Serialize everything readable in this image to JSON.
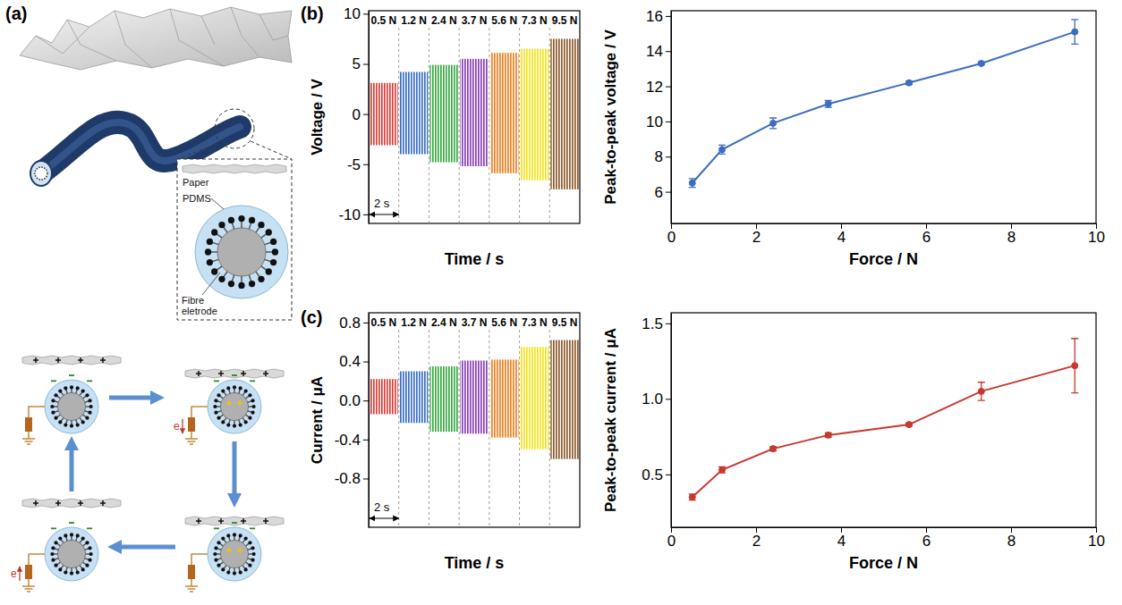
{
  "panel_labels": [
    "(a)",
    "(b)",
    "(c)"
  ],
  "diagram": {
    "layers": [
      "Paper",
      "PDMS",
      "Fibre eletrode"
    ],
    "electron_label": "e"
  },
  "chart_data": [
    {
      "type": "envelope",
      "categories": [
        "0.5 N",
        "1.2 N",
        "2.4 N",
        "3.7 N",
        "5.6 N",
        "7.3 N",
        "9.5 N"
      ],
      "x": [
        0,
        2,
        4,
        6,
        8,
        10,
        12
      ],
      "values": [
        3.1,
        4.2,
        4.9,
        5.5,
        6.1,
        6.5,
        7.5
      ],
      "lows": [
        -3.1,
        -4.0,
        -4.8,
        -5.2,
        -5.9,
        -6.6,
        -7.5
      ],
      "colors": [
        "#d6403a",
        "#3a6fc4",
        "#3aa845",
        "#8a3fb8",
        "#f07f1e",
        "#f2e21a",
        "#8b5a2b"
      ],
      "xlim": [
        0,
        14
      ],
      "ylim": [
        -10.9,
        10.3
      ],
      "yticks": [
        -10,
        -5,
        0,
        5,
        10
      ],
      "tick_labels": "y",
      "x_label": "Time / s",
      "y_label": "Voltage / V",
      "scale_bar": {
        "value": 2,
        "label": "2 s"
      }
    },
    {
      "type": "envelope",
      "categories": [
        "0.5 N",
        "1.2 N",
        "2.4 N",
        "3.7 N",
        "5.6 N",
        "7.3 N",
        "9.5 N"
      ],
      "x": [
        0,
        2,
        4,
        6,
        8,
        10,
        12
      ],
      "values": [
        0.22,
        0.3,
        0.35,
        0.41,
        0.42,
        0.55,
        0.62
      ],
      "lows": [
        -0.14,
        -0.23,
        -0.32,
        -0.34,
        -0.38,
        -0.5,
        -0.6
      ],
      "colors": [
        "#d6403a",
        "#3a6fc4",
        "#3aa845",
        "#8a3fb8",
        "#f07f1e",
        "#f2e21a",
        "#8b5a2b"
      ],
      "xlim": [
        0,
        14
      ],
      "ylim": [
        -1.3,
        0.9
      ],
      "yticks": [
        -0.8,
        -0.4,
        {
          "value": 0,
          "label": "0.0"
        },
        0.4,
        0.8
      ],
      "tick_labels": "y",
      "x_label": "Time / s",
      "y_label": "Current / μA",
      "scale_bar": {
        "value": 2,
        "label": "2 s"
      }
    },
    {
      "type": "line",
      "x": [
        0.5,
        1.2,
        2.4,
        3.7,
        5.6,
        7.3,
        9.5
      ],
      "values": [
        6.5,
        8.4,
        9.9,
        11.0,
        12.2,
        13.3,
        15.1
      ],
      "errors": [
        0.25,
        0.25,
        0.3,
        0.2,
        0.1,
        0.08,
        0.7
      ],
      "color": "#3d6cc0",
      "marker": "circle",
      "xlim": [
        0,
        10
      ],
      "xticks": [
        0,
        2,
        4,
        6,
        8,
        10
      ],
      "ylim": [
        4.2,
        16.3
      ],
      "yticks": [
        6,
        8,
        10,
        12,
        14,
        16
      ],
      "x_label": "Force / N",
      "y_label": "Peak-to-peak voltage / V"
    },
    {
      "type": "line",
      "x": [
        0.5,
        1.2,
        2.4,
        3.7,
        5.6,
        7.3,
        9.5
      ],
      "values": [
        0.35,
        0.53,
        0.67,
        0.76,
        0.83,
        1.05,
        1.22
      ],
      "errors": [
        0.02,
        0.02,
        0.015,
        0.015,
        0.01,
        0.06,
        0.18
      ],
      "color": "#c8382e",
      "marker": "circle",
      "xlim": [
        0,
        10
      ],
      "xticks": [
        0,
        2,
        4,
        6,
        8,
        10
      ],
      "ylim": [
        0.15,
        1.57
      ],
      "yticks": [
        0.5,
        {
          "value": 1,
          "label": "1.0"
        },
        1.5
      ],
      "x_label": "Force / N",
      "y_label": "Peak-to-peak current / μA"
    }
  ]
}
